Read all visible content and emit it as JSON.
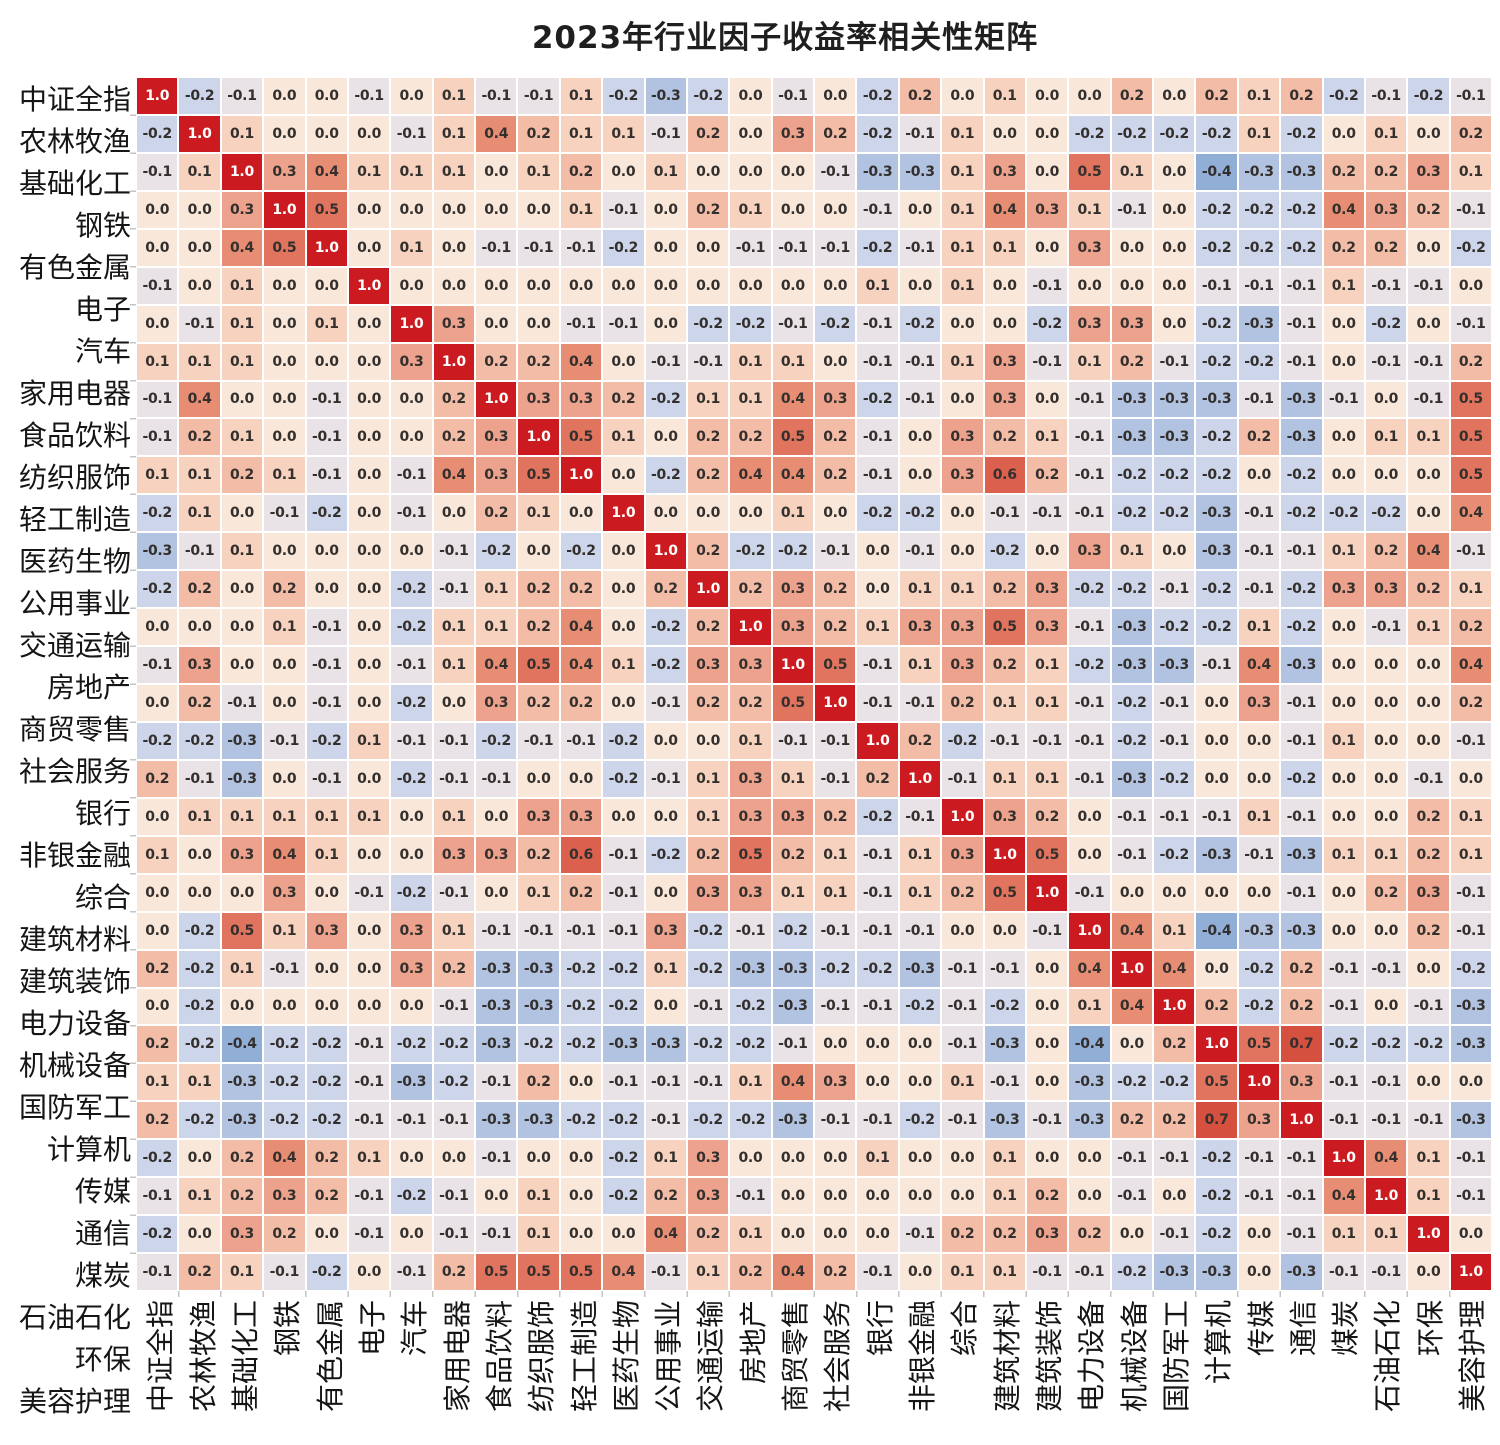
{
  "title": "2023年行业因子收益率相关性矩阵",
  "chart_data": {
    "type": "heatmap",
    "title": "2023年行业因子收益率相关性矩阵",
    "xlabel": "",
    "ylabel": "",
    "legend_position": "none",
    "grid": false,
    "value_decimals": 1,
    "value_range_shown": [
      -0.4,
      1.0
    ],
    "labels": [
      "中证全指",
      "农林牧渔",
      "基础化工",
      "钢铁",
      "有色金属",
      "电子",
      "汽车",
      "家用电器",
      "食品饮料",
      "纺织服饰",
      "轻工制造",
      "医药生物",
      "公用事业",
      "交通运输",
      "房地产",
      "商贸零售",
      "社会服务",
      "银行",
      "非银金融",
      "综合",
      "建筑材料",
      "建筑装饰",
      "电力设备",
      "机械设备",
      "国防军工",
      "计算机",
      "传媒",
      "通信",
      "煤炭",
      "石油石化",
      "环保",
      "美容护理"
    ],
    "matrix": [
      [
        1.0,
        -0.2,
        -0.1,
        0.0,
        0.0,
        -0.1,
        0.0,
        0.1,
        -0.1,
        -0.1,
        0.1,
        -0.2,
        -0.3,
        -0.2,
        0.0,
        -0.1,
        0.0,
        -0.2,
        0.2,
        0.0,
        0.1,
        0.0,
        0.0,
        0.2,
        0.0,
        0.2,
        0.1,
        0.2,
        -0.2,
        -0.1,
        -0.2,
        -0.1
      ],
      [
        -0.2,
        1.0,
        0.1,
        0.0,
        0.0,
        0.0,
        -0.1,
        0.1,
        0.4,
        0.2,
        0.1,
        0.1,
        -0.1,
        0.2,
        0.0,
        0.3,
        0.2,
        -0.2,
        -0.1,
        0.1,
        0.0,
        0.0,
        -0.2,
        -0.2,
        -0.2,
        -0.2,
        0.1,
        -0.2,
        0.0,
        0.1,
        0.0,
        0.2
      ],
      [
        -0.1,
        0.1,
        1.0,
        0.3,
        0.4,
        0.1,
        0.1,
        0.1,
        0.0,
        0.1,
        0.2,
        0.0,
        0.1,
        0.0,
        0.0,
        0.0,
        -0.1,
        -0.3,
        -0.3,
        0.1,
        0.3,
        0.0,
        0.5,
        0.1,
        0.0,
        -0.4,
        -0.3,
        -0.3,
        0.2,
        0.2,
        0.3,
        0.1
      ],
      [
        0.0,
        0.0,
        0.3,
        1.0,
        0.5,
        0.0,
        0.0,
        0.0,
        0.0,
        0.0,
        0.1,
        -0.1,
        0.0,
        0.2,
        0.1,
        0.0,
        0.0,
        -0.1,
        0.0,
        0.1,
        0.4,
        0.3,
        0.1,
        -0.1,
        0.0,
        -0.2,
        -0.2,
        -0.2,
        0.4,
        0.3,
        0.2,
        -0.1
      ],
      [
        0.0,
        0.0,
        0.4,
        0.5,
        1.0,
        0.0,
        0.1,
        0.0,
        -0.1,
        -0.1,
        -0.1,
        -0.2,
        0.0,
        0.0,
        -0.1,
        -0.1,
        -0.1,
        -0.2,
        -0.1,
        0.1,
        0.1,
        0.0,
        0.3,
        0.0,
        0.0,
        -0.2,
        -0.2,
        -0.2,
        0.2,
        0.2,
        0.0,
        -0.2
      ],
      [
        -0.1,
        0.0,
        0.1,
        0.0,
        0.0,
        1.0,
        0.0,
        0.0,
        0.0,
        0.0,
        0.0,
        0.0,
        0.0,
        0.0,
        0.0,
        0.0,
        0.0,
        0.1,
        0.0,
        0.1,
        0.0,
        -0.1,
        0.0,
        0.0,
        0.0,
        -0.1,
        -0.1,
        -0.1,
        0.1,
        -0.1,
        -0.1,
        0.0
      ],
      [
        0.0,
        -0.1,
        0.1,
        0.0,
        0.1,
        0.0,
        1.0,
        0.3,
        0.0,
        0.0,
        -0.1,
        -0.1,
        0.0,
        -0.2,
        -0.2,
        -0.1,
        -0.2,
        -0.1,
        -0.2,
        0.0,
        0.0,
        -0.2,
        0.3,
        0.3,
        0.0,
        -0.2,
        -0.3,
        -0.1,
        0.0,
        -0.2,
        0.0,
        -0.1
      ],
      [
        0.1,
        0.1,
        0.1,
        0.0,
        0.0,
        0.0,
        0.3,
        1.0,
        0.2,
        0.2,
        0.4,
        0.0,
        -0.1,
        -0.1,
        0.1,
        0.1,
        0.0,
        -0.1,
        -0.1,
        0.1,
        0.3,
        -0.1,
        0.1,
        0.2,
        -0.1,
        -0.2,
        -0.2,
        -0.1,
        0.0,
        -0.1,
        -0.1,
        0.2
      ],
      [
        -0.1,
        0.4,
        0.0,
        0.0,
        -0.1,
        0.0,
        0.0,
        0.2,
        1.0,
        0.3,
        0.3,
        0.2,
        -0.2,
        0.1,
        0.1,
        0.4,
        0.3,
        -0.2,
        -0.1,
        0.0,
        0.3,
        0.0,
        -0.1,
        -0.3,
        -0.3,
        -0.3,
        -0.1,
        -0.3,
        -0.1,
        0.0,
        -0.1,
        0.5
      ],
      [
        -0.1,
        0.2,
        0.1,
        0.0,
        -0.1,
        0.0,
        0.0,
        0.2,
        0.3,
        1.0,
        0.5,
        0.1,
        0.0,
        0.2,
        0.2,
        0.5,
        0.2,
        -0.1,
        0.0,
        0.3,
        0.2,
        0.1,
        -0.1,
        -0.3,
        -0.3,
        -0.2,
        0.2,
        -0.3,
        0.0,
        0.1,
        0.1,
        0.5
      ],
      [
        0.1,
        0.1,
        0.2,
        0.1,
        -0.1,
        0.0,
        -0.1,
        0.4,
        0.3,
        0.5,
        1.0,
        0.0,
        -0.2,
        0.2,
        0.4,
        0.4,
        0.2,
        -0.1,
        0.0,
        0.3,
        0.6,
        0.2,
        -0.1,
        -0.2,
        -0.2,
        -0.2,
        0.0,
        -0.2,
        0.0,
        0.0,
        0.0,
        0.5
      ],
      [
        -0.2,
        0.1,
        0.0,
        -0.1,
        -0.2,
        0.0,
        -0.1,
        0.0,
        0.2,
        0.1,
        0.0,
        1.0,
        0.0,
        0.0,
        0.0,
        0.1,
        0.0,
        -0.2,
        -0.2,
        0.0,
        -0.1,
        -0.1,
        -0.1,
        -0.2,
        -0.2,
        -0.3,
        -0.1,
        -0.2,
        -0.2,
        -0.2,
        0.0,
        0.4
      ],
      [
        -0.3,
        -0.1,
        0.1,
        0.0,
        0.0,
        0.0,
        0.0,
        -0.1,
        -0.2,
        0.0,
        -0.2,
        0.0,
        1.0,
        0.2,
        -0.2,
        -0.2,
        -0.1,
        0.0,
        -0.1,
        0.0,
        -0.2,
        0.0,
        0.3,
        0.1,
        0.0,
        -0.3,
        -0.1,
        -0.1,
        0.1,
        0.2,
        0.4,
        -0.1
      ],
      [
        -0.2,
        0.2,
        0.0,
        0.2,
        0.0,
        0.0,
        -0.2,
        -0.1,
        0.1,
        0.2,
        0.2,
        0.0,
        0.2,
        1.0,
        0.2,
        0.3,
        0.2,
        0.0,
        0.1,
        0.1,
        0.2,
        0.3,
        -0.2,
        -0.2,
        -0.1,
        -0.2,
        -0.1,
        -0.2,
        0.3,
        0.3,
        0.2,
        0.1
      ],
      [
        0.0,
        0.0,
        0.0,
        0.1,
        -0.1,
        0.0,
        -0.2,
        0.1,
        0.1,
        0.2,
        0.4,
        0.0,
        -0.2,
        0.2,
        1.0,
        0.3,
        0.2,
        0.1,
        0.3,
        0.3,
        0.5,
        0.3,
        -0.1,
        -0.3,
        -0.2,
        -0.2,
        0.1,
        -0.2,
        0.0,
        -0.1,
        0.1,
        0.2
      ],
      [
        -0.1,
        0.3,
        0.0,
        0.0,
        -0.1,
        0.0,
        -0.1,
        0.1,
        0.4,
        0.5,
        0.4,
        0.1,
        -0.2,
        0.3,
        0.3,
        1.0,
        0.5,
        -0.1,
        0.1,
        0.3,
        0.2,
        0.1,
        -0.2,
        -0.3,
        -0.3,
        -0.1,
        0.4,
        -0.3,
        0.0,
        0.0,
        0.0,
        0.4
      ],
      [
        0.0,
        0.2,
        -0.1,
        0.0,
        -0.1,
        0.0,
        -0.2,
        0.0,
        0.3,
        0.2,
        0.2,
        0.0,
        -0.1,
        0.2,
        0.2,
        0.5,
        1.0,
        -0.1,
        -0.1,
        0.2,
        0.1,
        0.1,
        -0.1,
        -0.2,
        -0.1,
        0.0,
        0.3,
        -0.1,
        0.0,
        0.0,
        0.0,
        0.2
      ],
      [
        -0.2,
        -0.2,
        -0.3,
        -0.1,
        -0.2,
        0.1,
        -0.1,
        -0.1,
        -0.2,
        -0.1,
        -0.1,
        -0.2,
        0.0,
        0.0,
        0.1,
        -0.1,
        -0.1,
        1.0,
        0.2,
        -0.2,
        -0.1,
        -0.1,
        -0.1,
        -0.2,
        -0.1,
        0.0,
        0.0,
        -0.1,
        0.1,
        0.0,
        0.0,
        -0.1
      ],
      [
        0.2,
        -0.1,
        -0.3,
        0.0,
        -0.1,
        0.0,
        -0.2,
        -0.1,
        -0.1,
        0.0,
        0.0,
        -0.2,
        -0.1,
        0.1,
        0.3,
        0.1,
        -0.1,
        0.2,
        1.0,
        -0.1,
        0.1,
        0.1,
        -0.1,
        -0.3,
        -0.2,
        0.0,
        0.0,
        -0.2,
        0.0,
        0.0,
        -0.1,
        0.0
      ],
      [
        0.0,
        0.1,
        0.1,
        0.1,
        0.1,
        0.1,
        0.0,
        0.1,
        0.0,
        0.3,
        0.3,
        0.0,
        0.0,
        0.1,
        0.3,
        0.3,
        0.2,
        -0.2,
        -0.1,
        1.0,
        0.3,
        0.2,
        0.0,
        -0.1,
        -0.1,
        -0.1,
        0.1,
        -0.1,
        0.0,
        0.0,
        0.2,
        0.1
      ],
      [
        0.1,
        0.0,
        0.3,
        0.4,
        0.1,
        0.0,
        0.0,
        0.3,
        0.3,
        0.2,
        0.6,
        -0.1,
        -0.2,
        0.2,
        0.5,
        0.2,
        0.1,
        -0.1,
        0.1,
        0.3,
        1.0,
        0.5,
        0.0,
        -0.1,
        -0.2,
        -0.3,
        -0.1,
        -0.3,
        0.1,
        0.1,
        0.2,
        0.1
      ],
      [
        0.0,
        0.0,
        0.0,
        0.3,
        0.0,
        -0.1,
        -0.2,
        -0.1,
        0.0,
        0.1,
        0.2,
        -0.1,
        0.0,
        0.3,
        0.3,
        0.1,
        0.1,
        -0.1,
        0.1,
        0.2,
        0.5,
        1.0,
        -0.1,
        0.0,
        0.0,
        0.0,
        0.0,
        -0.1,
        0.0,
        0.2,
        0.3,
        -0.1
      ],
      [
        0.0,
        -0.2,
        0.5,
        0.1,
        0.3,
        0.0,
        0.3,
        0.1,
        -0.1,
        -0.1,
        -0.1,
        -0.1,
        0.3,
        -0.2,
        -0.1,
        -0.2,
        -0.1,
        -0.1,
        -0.1,
        0.0,
        0.0,
        -0.1,
        1.0,
        0.4,
        0.1,
        -0.4,
        -0.3,
        -0.3,
        0.0,
        0.0,
        0.2,
        -0.1
      ],
      [
        0.2,
        -0.2,
        0.1,
        -0.1,
        0.0,
        0.0,
        0.3,
        0.2,
        -0.3,
        -0.3,
        -0.2,
        -0.2,
        0.1,
        -0.2,
        -0.3,
        -0.3,
        -0.2,
        -0.2,
        -0.3,
        -0.1,
        -0.1,
        0.0,
        0.4,
        1.0,
        0.4,
        0.0,
        -0.2,
        0.2,
        -0.1,
        -0.1,
        0.0,
        -0.2
      ],
      [
        0.0,
        -0.2,
        0.0,
        0.0,
        0.0,
        0.0,
        0.0,
        -0.1,
        -0.3,
        -0.3,
        -0.2,
        -0.2,
        0.0,
        -0.1,
        -0.2,
        -0.3,
        -0.1,
        -0.1,
        -0.2,
        -0.1,
        -0.2,
        0.0,
        0.1,
        0.4,
        1.0,
        0.2,
        -0.2,
        0.2,
        -0.1,
        0.0,
        -0.1,
        -0.3
      ],
      [
        0.2,
        -0.2,
        -0.4,
        -0.2,
        -0.2,
        -0.1,
        -0.2,
        -0.2,
        -0.3,
        -0.2,
        -0.2,
        -0.3,
        -0.3,
        -0.2,
        -0.2,
        -0.1,
        0.0,
        0.0,
        0.0,
        -0.1,
        -0.3,
        0.0,
        -0.4,
        0.0,
        0.2,
        1.0,
        0.5,
        0.7,
        -0.2,
        -0.2,
        -0.2,
        -0.3
      ],
      [
        0.1,
        0.1,
        -0.3,
        -0.2,
        -0.2,
        -0.1,
        -0.3,
        -0.2,
        -0.1,
        0.2,
        0.0,
        -0.1,
        -0.1,
        -0.1,
        0.1,
        0.4,
        0.3,
        0.0,
        0.0,
        0.1,
        -0.1,
        0.0,
        -0.3,
        -0.2,
        -0.2,
        0.5,
        1.0,
        0.3,
        -0.1,
        -0.1,
        0.0,
        0.0
      ],
      [
        0.2,
        -0.2,
        -0.3,
        -0.2,
        -0.2,
        -0.1,
        -0.1,
        -0.1,
        -0.3,
        -0.3,
        -0.2,
        -0.2,
        -0.1,
        -0.2,
        -0.2,
        -0.3,
        -0.1,
        -0.1,
        -0.2,
        -0.1,
        -0.3,
        -0.1,
        -0.3,
        0.2,
        0.2,
        0.7,
        0.3,
        1.0,
        -0.1,
        -0.1,
        -0.1,
        -0.3
      ],
      [
        -0.2,
        0.0,
        0.2,
        0.4,
        0.2,
        0.1,
        0.0,
        0.0,
        -0.1,
        0.0,
        0.0,
        -0.2,
        0.1,
        0.3,
        0.0,
        0.0,
        0.0,
        0.1,
        0.0,
        0.0,
        0.1,
        0.0,
        0.0,
        -0.1,
        -0.1,
        -0.2,
        -0.1,
        -0.1,
        1.0,
        0.4,
        0.1,
        -0.1
      ],
      [
        -0.1,
        0.1,
        0.2,
        0.3,
        0.2,
        -0.1,
        -0.2,
        -0.1,
        0.0,
        0.1,
        0.0,
        -0.2,
        0.2,
        0.3,
        -0.1,
        0.0,
        0.0,
        0.0,
        0.0,
        0.0,
        0.1,
        0.2,
        0.0,
        -0.1,
        0.0,
        -0.2,
        -0.1,
        -0.1,
        0.4,
        1.0,
        0.1,
        -0.1
      ],
      [
        -0.2,
        0.0,
        0.3,
        0.2,
        0.0,
        -0.1,
        0.0,
        -0.1,
        -0.1,
        0.1,
        0.0,
        0.0,
        0.4,
        0.2,
        0.1,
        0.0,
        0.0,
        0.0,
        -0.1,
        0.2,
        0.2,
        0.3,
        0.2,
        0.0,
        -0.1,
        -0.2,
        0.0,
        -0.1,
        0.1,
        0.1,
        1.0,
        0.0
      ],
      [
        -0.1,
        0.2,
        0.1,
        -0.1,
        -0.2,
        0.0,
        -0.1,
        0.2,
        0.5,
        0.5,
        0.5,
        0.4,
        -0.1,
        0.1,
        0.2,
        0.4,
        0.2,
        -0.1,
        0.0,
        0.1,
        0.1,
        -0.1,
        -0.1,
        -0.2,
        -0.3,
        -0.3,
        0.0,
        -0.3,
        -0.1,
        -0.1,
        0.0,
        1.0
      ]
    ],
    "colors": {
      "-0.4": "#90aed6",
      "-0.3": "#b1c3e1",
      "-0.2": "#cdd5ea",
      "-0.1": "#e9e2e6",
      "0.0": "#f9e8da",
      "0.1": "#f7d3bf",
      "0.2": "#f2bca6",
      "0.3": "#eca28c",
      "0.4": "#e78d74",
      "0.5": "#e0745f",
      "0.6": "#db604e",
      "0.7": "#d5503f",
      "1.0": "#cb1b20"
    },
    "cell_text_color": "#332f2d",
    "diagonal_text_color": "#ffffff",
    "background_color": "#ffffff",
    "tick_color": "#c4c4c4"
  }
}
